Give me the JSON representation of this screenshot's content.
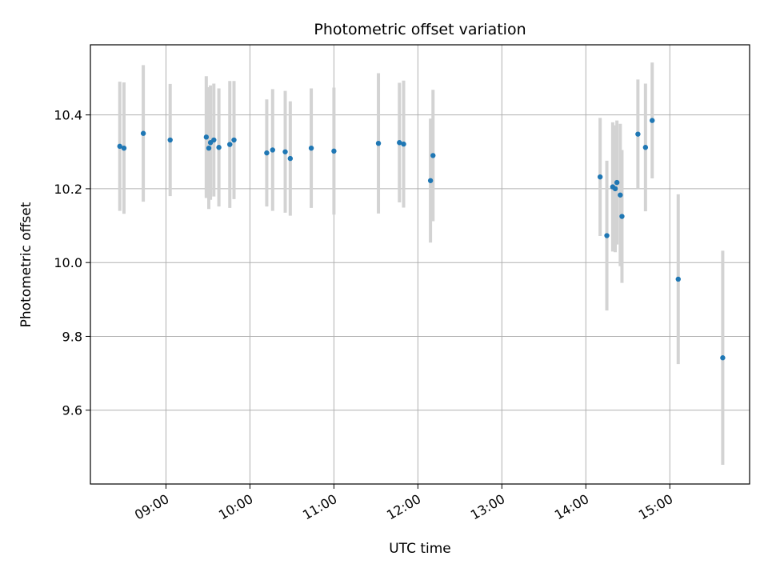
{
  "chart_data": {
    "type": "scatter",
    "title": "Photometric offset variation",
    "xlabel": "UTC time",
    "ylabel": "Photometric offset",
    "grid": true,
    "xlim_hours": [
      8.1,
      15.95
    ],
    "ylim": [
      9.4,
      10.59
    ],
    "x_ticks": [
      {
        "value": 9,
        "label": "09:00"
      },
      {
        "value": 10,
        "label": "10:00"
      },
      {
        "value": 11,
        "label": "11:00"
      },
      {
        "value": 12,
        "label": "12:00"
      },
      {
        "value": 13,
        "label": "13:00"
      },
      {
        "value": 14,
        "label": "14:00"
      },
      {
        "value": 15,
        "label": "15:00"
      }
    ],
    "y_ticks": [
      {
        "value": 9.6,
        "label": "9.6"
      },
      {
        "value": 9.8,
        "label": "9.8"
      },
      {
        "value": 10.0,
        "label": "10.0"
      },
      {
        "value": 10.2,
        "label": "10.2"
      },
      {
        "value": 10.4,
        "label": "10.4"
      }
    ],
    "marker_color": "#1f77b4",
    "errorbar_color": "#d3d3d3",
    "points": [
      {
        "t": 8.45,
        "y": 10.315,
        "err": 0.175
      },
      {
        "t": 8.5,
        "y": 10.31,
        "err": 0.178
      },
      {
        "t": 8.73,
        "y": 10.35,
        "err": 0.185
      },
      {
        "t": 9.05,
        "y": 10.332,
        "err": 0.152
      },
      {
        "t": 9.48,
        "y": 10.34,
        "err": 0.165
      },
      {
        "t": 9.51,
        "y": 10.31,
        "err": 0.165
      },
      {
        "t": 9.53,
        "y": 10.325,
        "err": 0.155
      },
      {
        "t": 9.57,
        "y": 10.332,
        "err": 0.153
      },
      {
        "t": 9.63,
        "y": 10.312,
        "err": 0.16
      },
      {
        "t": 9.76,
        "y": 10.32,
        "err": 0.172
      },
      {
        "t": 9.81,
        "y": 10.332,
        "err": 0.16
      },
      {
        "t": 10.2,
        "y": 10.297,
        "err": 0.145
      },
      {
        "t": 10.27,
        "y": 10.305,
        "err": 0.165
      },
      {
        "t": 10.42,
        "y": 10.3,
        "err": 0.165
      },
      {
        "t": 10.48,
        "y": 10.282,
        "err": 0.155
      },
      {
        "t": 10.73,
        "y": 10.31,
        "err": 0.162
      },
      {
        "t": 11.0,
        "y": 10.302,
        "err": 0.172
      },
      {
        "t": 11.53,
        "y": 10.323,
        "err": 0.19
      },
      {
        "t": 11.78,
        "y": 10.325,
        "err": 0.162
      },
      {
        "t": 11.83,
        "y": 10.321,
        "err": 0.172
      },
      {
        "t": 12.15,
        "y": 10.222,
        "err": 0.168
      },
      {
        "t": 12.18,
        "y": 10.29,
        "err": 0.178
      },
      {
        "t": 14.17,
        "y": 10.232,
        "err": 0.16
      },
      {
        "t": 14.25,
        "y": 10.073,
        "err": 0.203
      },
      {
        "t": 14.32,
        "y": 10.205,
        "err": 0.175
      },
      {
        "t": 14.35,
        "y": 10.2,
        "err": 0.172
      },
      {
        "t": 14.37,
        "y": 10.217,
        "err": 0.168
      },
      {
        "t": 14.41,
        "y": 10.183,
        "err": 0.193
      },
      {
        "t": 14.43,
        "y": 10.125,
        "err": 0.18
      },
      {
        "t": 14.62,
        "y": 10.348,
        "err": 0.148
      },
      {
        "t": 14.71,
        "y": 10.312,
        "err": 0.173
      },
      {
        "t": 14.79,
        "y": 10.385,
        "err": 0.157
      },
      {
        "t": 15.1,
        "y": 9.955,
        "err": 0.23
      },
      {
        "t": 15.63,
        "y": 9.742,
        "err": 0.29
      }
    ]
  }
}
